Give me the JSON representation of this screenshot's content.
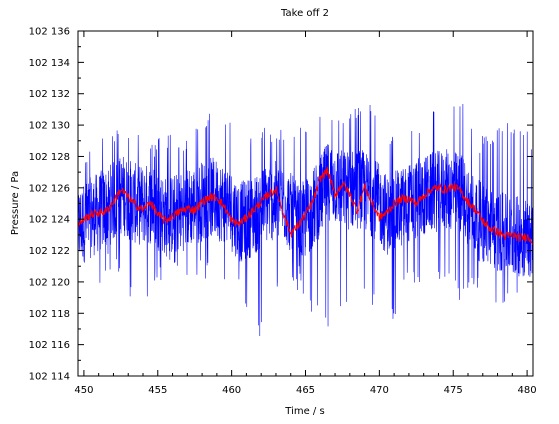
{
  "chart_data": {
    "type": "line",
    "title": "Take off 2",
    "xlabel": "Time / s",
    "ylabel": "Pressure / Pa",
    "xlim": [
      449.6,
      480.4
    ],
    "ylim": [
      102114,
      102136
    ],
    "xticks": [
      450,
      455,
      460,
      465,
      470,
      475,
      480
    ],
    "xtick_labels": [
      "450",
      "455",
      "460",
      "465",
      "470",
      "475",
      "480"
    ],
    "yticks": [
      102114,
      102116,
      102118,
      102120,
      102122,
      102124,
      102126,
      102128,
      102130,
      102132,
      102134,
      102136
    ],
    "ytick_labels": [
      "102 114",
      "102 116",
      "102 118",
      "102 120",
      "102 122",
      "102 124",
      "102 126",
      "102 128",
      "102 130",
      "102 132",
      "102 134",
      "102 136"
    ],
    "grid": false,
    "legend": "none",
    "series": [
      {
        "role": "raw",
        "color": "#0000ff",
        "x": [
          449.6,
          450.6,
          451.6,
          452.6,
          453.6,
          454.6,
          455.6,
          456.6,
          457.6,
          458.6,
          459.6,
          460.6,
          461.6,
          462.6,
          463.6,
          464.6,
          465.6,
          466.6,
          467.6,
          468.6,
          469.6,
          470.6,
          471.6,
          472.6,
          473.6,
          474.6,
          475.6,
          476.6,
          477.6,
          478.6,
          479.6,
          480.4
        ],
        "mean": [
          102123.5,
          102124.2,
          102124.8,
          102125.6,
          102124.9,
          102125.0,
          102124.1,
          102124.5,
          102125.0,
          102125.4,
          102125.0,
          102123.8,
          102124.3,
          102125.2,
          102125.0,
          102123.5,
          102124.8,
          102126.5,
          102125.8,
          102126.0,
          102125.4,
          102124.2,
          102124.8,
          102125.3,
          102125.7,
          102125.9,
          102125.6,
          102124.0,
          102123.4,
          102123.0,
          102122.9,
          102122.8
        ],
        "max": [
          102127.5,
          102129.0,
          102130.4,
          102129.5,
          102129.8,
          102129.0,
          102129.5,
          102129.2,
          102130.4,
          102131.0,
          102130.4,
          102129.6,
          102129.8,
          102130.0,
          102129.8,
          102129.8,
          102131.4,
          102131.4,
          102131.2,
          102131.4,
          102131.4,
          102129.8,
          102130.6,
          102130.2,
          102131.2,
          102131.2,
          102132.0,
          102129.2,
          102129.6,
          102130.4,
          102130.2,
          102129.0
        ],
        "min": [
          102119.0,
          102118.4,
          102120.6,
          102120.6,
          102117.4,
          102119.6,
          102120.4,
          102120.2,
          102120.4,
          102120.0,
          102119.8,
          102119.2,
          102115.2,
          102119.0,
          102120.0,
          102119.4,
          102117.8,
          102116.6,
          102118.4,
          102119.4,
          102118.4,
          102116.6,
          102119.4,
          102119.6,
          102119.6,
          102120.4,
          102118.4,
          102119.6,
          102117.0,
          102118.8,
          102118.0,
          102120.0
        ]
      },
      {
        "role": "filtered",
        "color": "#ff0000",
        "x": [
          449.6,
          450.0,
          450.5,
          451.0,
          451.5,
          452.0,
          452.5,
          453.0,
          453.5,
          454.0,
          454.5,
          455.0,
          455.5,
          456.0,
          456.5,
          457.0,
          457.5,
          458.0,
          458.5,
          459.0,
          459.5,
          460.0,
          460.5,
          461.0,
          461.5,
          462.0,
          462.5,
          463.0,
          463.5,
          464.0,
          464.5,
          465.0,
          465.5,
          466.0,
          466.5,
          467.0,
          467.5,
          468.0,
          468.5,
          469.0,
          469.5,
          470.0,
          470.5,
          471.0,
          471.5,
          472.0,
          472.5,
          473.0,
          473.5,
          474.0,
          474.5,
          475.0,
          475.5,
          476.0,
          476.5,
          477.0,
          477.5,
          478.0,
          478.5,
          479.0,
          479.5,
          480.0,
          480.4
        ],
        "values": [
          102123.6,
          102124.0,
          102124.3,
          102124.4,
          102124.5,
          102125.1,
          102125.9,
          102125.4,
          102124.9,
          102124.6,
          102125.1,
          102124.3,
          102123.9,
          102124.2,
          102124.5,
          102124.7,
          102124.6,
          102125.1,
          102125.4,
          102125.4,
          102124.8,
          102123.9,
          102123.7,
          102124.1,
          102124.6,
          102125.1,
          102125.6,
          102125.9,
          102124.4,
          102123.1,
          102123.6,
          102124.3,
          102125.1,
          102126.6,
          102127.1,
          102125.5,
          102126.3,
          102125.6,
          102124.5,
          102126.1,
          102125.0,
          102124.1,
          102124.4,
          102125.0,
          102125.3,
          102125.3,
          102125.0,
          102125.5,
          102125.9,
          102126.0,
          102125.9,
          102126.1,
          102125.8,
          102125.1,
          102124.6,
          102123.9,
          102123.4,
          102123.2,
          102122.9,
          102123.0,
          102122.8,
          102122.9,
          102122.6
        ]
      }
    ]
  }
}
